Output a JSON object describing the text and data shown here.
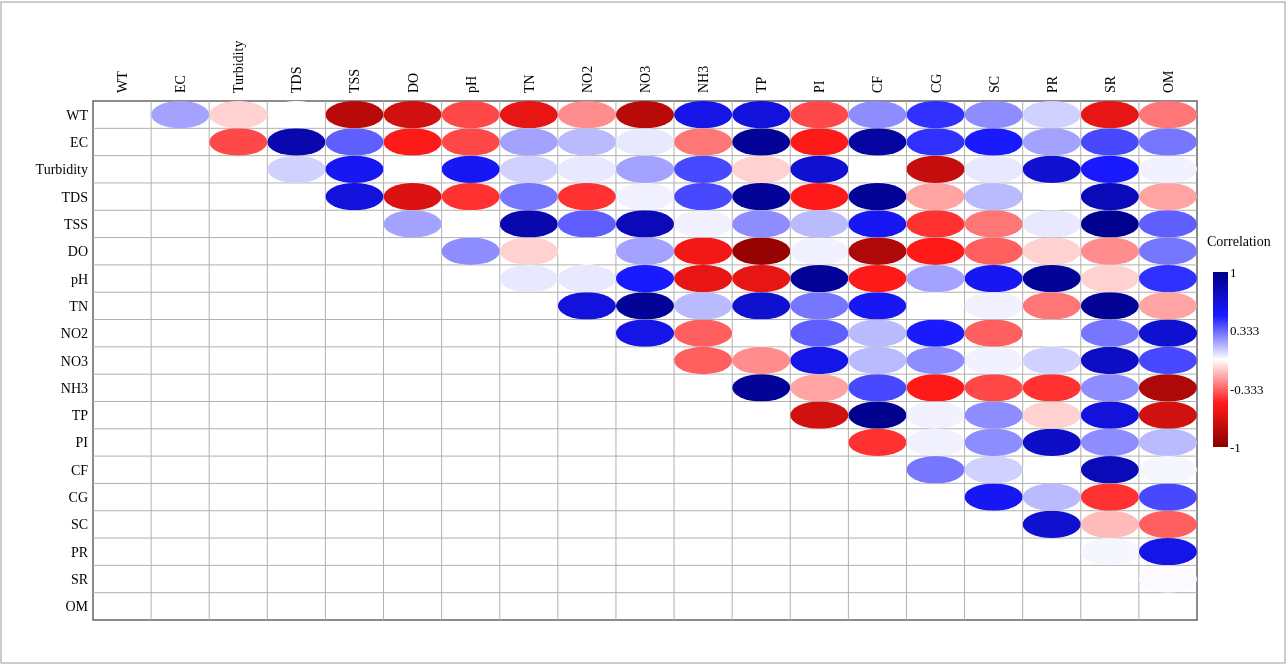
{
  "chart_data": {
    "type": "heatmap",
    "legend_title": "Correlation",
    "categories": [
      "WT",
      "EC",
      "Turbidity",
      "TDS",
      "TSS",
      "DO",
      "pH",
      "TN",
      "NO2",
      "NO3",
      "NH3",
      "TP",
      "PI",
      "CF",
      "CG",
      "SC",
      "PR",
      "SR",
      "OM"
    ],
    "y_categories": [
      "WT",
      "EC",
      "Turbidity",
      "TDS",
      "TSS",
      "DO",
      "pH",
      "TN",
      "NO2",
      "NO3",
      "NH3",
      "TP",
      "PI",
      "CF",
      "CG",
      "SC",
      "PR",
      "SR",
      "OM"
    ],
    "cells": [
      [
        null,
        0.2,
        -0.1,
        0,
        -0.8,
        -0.7,
        -0.4,
        -0.6,
        -0.25,
        -0.8,
        0.6,
        0.65,
        -0.4,
        0.25,
        0.45,
        0.25,
        0.1,
        -0.6,
        -0.3
      ],
      [
        null,
        null,
        -0.4,
        0.85,
        0.35,
        -0.5,
        -0.4,
        0.2,
        0.15,
        0.05,
        -0.3,
        0.95,
        -0.5,
        0.9,
        0.45,
        0.5,
        0.2,
        0.4,
        0.3
      ],
      [
        null,
        null,
        null,
        0.1,
        0.55,
        0,
        0.55,
        0.1,
        0.05,
        0.2,
        0.4,
        -0.1,
        0.7,
        0,
        -0.75,
        0.05,
        0.7,
        0.5,
        0.03
      ],
      [
        null,
        null,
        null,
        null,
        0.65,
        -0.65,
        -0.45,
        0.3,
        -0.45,
        0.03,
        0.4,
        0.95,
        -0.5,
        0.95,
        -0.2,
        0.15,
        0,
        0.8,
        -0.2
      ],
      [
        null,
        null,
        null,
        null,
        null,
        0.2,
        0,
        0.85,
        0.35,
        0.8,
        0.03,
        0.25,
        0.15,
        0.55,
        -0.45,
        -0.3,
        0.05,
        0.98,
        0.35
      ],
      [
        null,
        null,
        null,
        null,
        null,
        null,
        0.25,
        -0.1,
        0,
        0.2,
        -0.55,
        -0.95,
        0.03,
        -0.85,
        -0.5,
        -0.35,
        -0.1,
        -0.25,
        0.3
      ],
      [
        null,
        null,
        null,
        null,
        null,
        null,
        null,
        0.05,
        0.05,
        0.5,
        -0.6,
        -0.6,
        0.95,
        -0.5,
        0.2,
        0.55,
        0.95,
        -0.1,
        0.45
      ],
      [
        null,
        null,
        null,
        null,
        null,
        null,
        null,
        null,
        0.65,
        0.95,
        0.15,
        0.7,
        0.3,
        0.55,
        0,
        0.03,
        -0.3,
        0.95,
        -0.2
      ],
      [
        null,
        null,
        null,
        null,
        null,
        null,
        null,
        null,
        null,
        0.6,
        -0.35,
        0,
        0.35,
        0.15,
        0.5,
        -0.35,
        0,
        0.3,
        0.7
      ],
      [
        null,
        null,
        null,
        null,
        null,
        null,
        null,
        null,
        null,
        null,
        -0.35,
        -0.25,
        0.6,
        0.15,
        0.25,
        0.03,
        0.1,
        0.75,
        0.4
      ],
      [
        null,
        null,
        null,
        null,
        null,
        null,
        null,
        null,
        null,
        null,
        null,
        0.95,
        -0.2,
        0.4,
        -0.5,
        -0.4,
        -0.45,
        0.25,
        -0.85
      ],
      [
        null,
        null,
        null,
        null,
        null,
        null,
        null,
        null,
        null,
        null,
        null,
        null,
        -0.7,
        0.98,
        0.03,
        0.25,
        -0.1,
        0.65,
        -0.7
      ],
      [
        null,
        null,
        null,
        null,
        null,
        null,
        null,
        null,
        null,
        null,
        null,
        null,
        null,
        -0.45,
        0.03,
        0.25,
        0.75,
        0.25,
        0.15
      ],
      [
        null,
        null,
        null,
        null,
        null,
        null,
        null,
        null,
        null,
        null,
        null,
        null,
        null,
        null,
        0.3,
        0.1,
        0,
        0.8,
        0.02
      ],
      [
        null,
        null,
        null,
        null,
        null,
        null,
        null,
        null,
        null,
        null,
        null,
        null,
        null,
        null,
        null,
        0.55,
        0.15,
        -0.45,
        0.4
      ],
      [
        null,
        null,
        null,
        null,
        null,
        null,
        null,
        null,
        null,
        null,
        null,
        null,
        null,
        null,
        null,
        null,
        0.7,
        -0.15,
        -0.35
      ],
      [
        null,
        null,
        null,
        null,
        null,
        null,
        null,
        null,
        null,
        null,
        null,
        null,
        null,
        null,
        null,
        null,
        null,
        0.02,
        0.6
      ],
      [
        null,
        null,
        null,
        null,
        null,
        null,
        null,
        null,
        null,
        null,
        null,
        null,
        null,
        null,
        null,
        null,
        null,
        null,
        0.01
      ],
      [
        null,
        null,
        null,
        null,
        null,
        null,
        null,
        null,
        null,
        null,
        null,
        null,
        null,
        null,
        null,
        null,
        null,
        null,
        null
      ]
    ],
    "clim": [
      -1,
      1
    ],
    "cticks": [
      1,
      0.333,
      -0.333,
      -1
    ],
    "grid": true
  }
}
